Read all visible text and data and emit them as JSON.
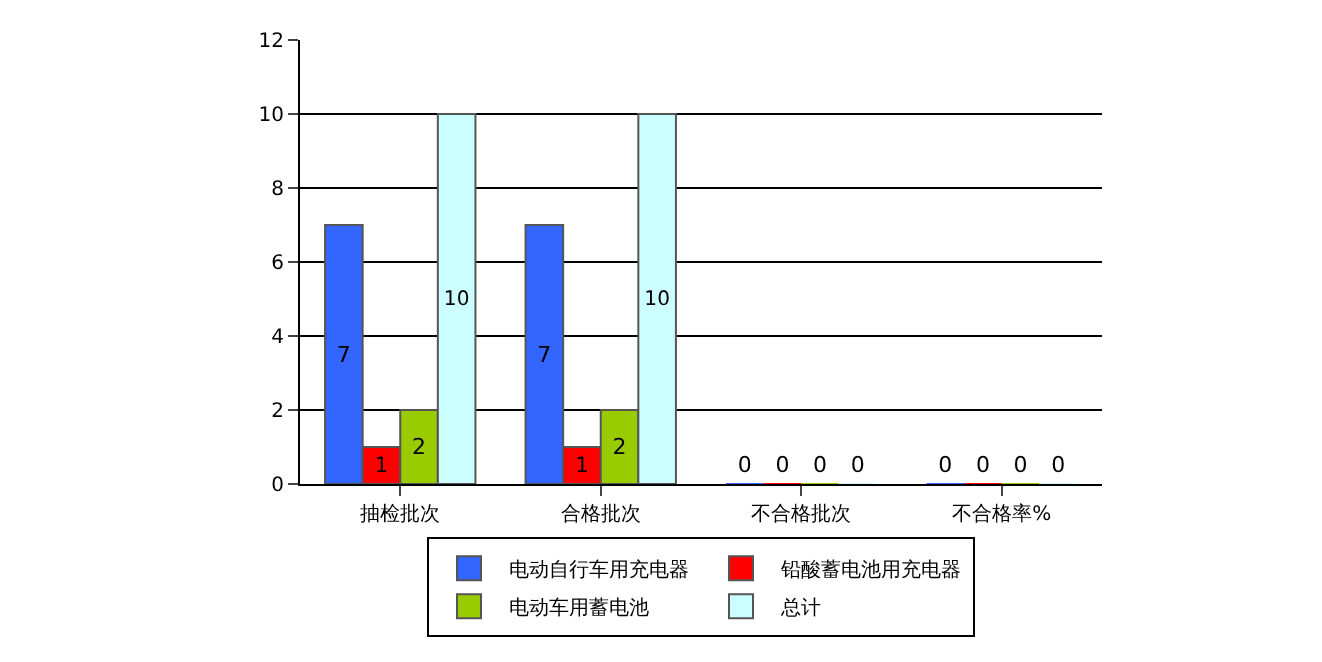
{
  "chart_data": {
    "type": "bar",
    "categories": [
      "抽检批次",
      "合格批次",
      "不合格批次",
      "不合格率%"
    ],
    "series": [
      {
        "name": "电动自行车用充电器",
        "color": "#3366ff",
        "values": [
          7,
          7,
          0,
          0
        ]
      },
      {
        "name": "铅酸蓄电池用充电器",
        "color": "#ff0000",
        "values": [
          1,
          1,
          0,
          0
        ]
      },
      {
        "name": "电动车用蓄电池",
        "color": "#99cc00",
        "values": [
          2,
          2,
          0,
          0
        ]
      },
      {
        "name": "总计",
        "color": "#ccffff",
        "values": [
          10,
          10,
          0,
          0
        ]
      }
    ],
    "ylim": [
      0,
      12
    ],
    "yticks": [
      0,
      2,
      4,
      6,
      8,
      10,
      12
    ],
    "grid": "y",
    "data_labels": true,
    "legend": "bottom"
  }
}
